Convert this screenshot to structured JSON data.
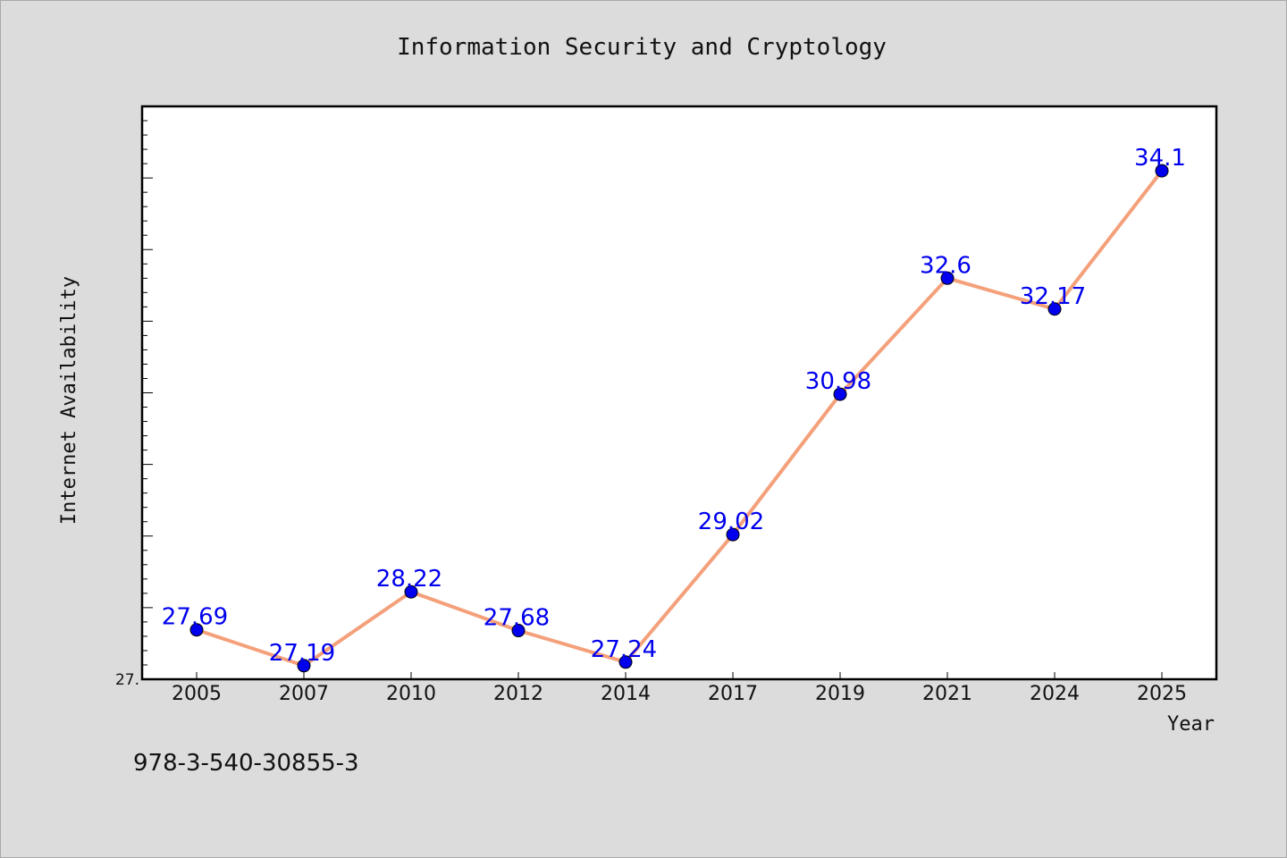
{
  "chart_data": {
    "type": "line",
    "title": "Information Security and Cryptology",
    "xlabel": "Year",
    "ylabel": "Internet Availability",
    "categories": [
      "2005",
      "2007",
      "2010",
      "2012",
      "2014",
      "2017",
      "2019",
      "2021",
      "2024",
      "2025"
    ],
    "values": [
      27.69,
      27.19,
      28.22,
      27.68,
      27.24,
      29.02,
      30.98,
      32.6,
      32.17,
      34.1
    ],
    "data_labels": [
      "27.69",
      "27.19",
      "28.22",
      "27.68",
      "27.24",
      "29.02",
      "30.98",
      "32.6",
      "32.17",
      "34.1"
    ],
    "ylim": [
      27.0,
      35.0
    ],
    "y_tick_labels": [
      "27."
    ],
    "grid": false,
    "line_color": "#f4a07a",
    "marker_color": "#0000ee",
    "label_color": "#0000ee"
  },
  "footnote": "978-3-540-30855-3"
}
